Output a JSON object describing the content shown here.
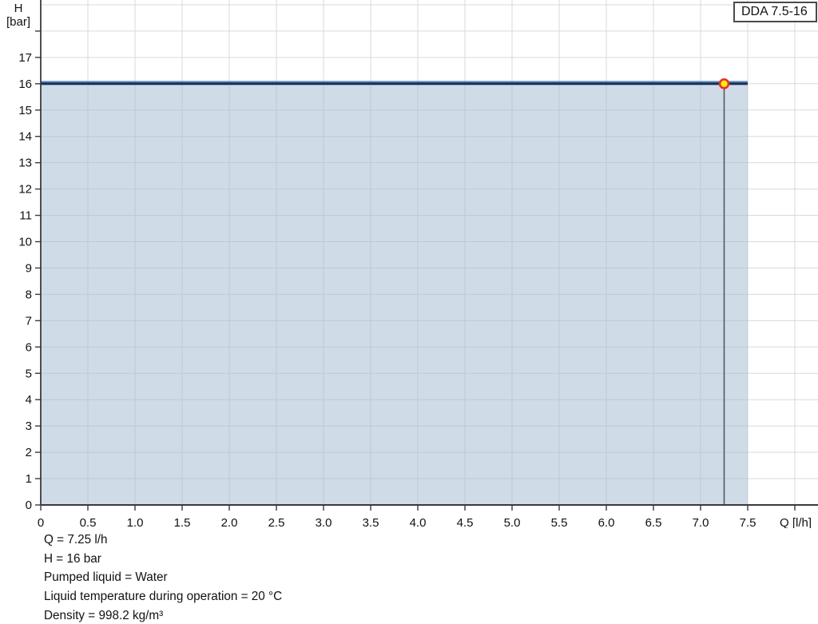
{
  "legend": {
    "label": "DDA 7.5-16"
  },
  "y_axis": {
    "title_line1": "H",
    "title_line2": "[bar]",
    "ticks": [
      0,
      1,
      2,
      3,
      4,
      5,
      6,
      7,
      8,
      9,
      10,
      11,
      12,
      13,
      14,
      15,
      16,
      17,
      18
    ],
    "tick_labels": [
      "0",
      "1",
      "2",
      "3",
      "4",
      "5",
      "6",
      "7",
      "8",
      "9",
      "10",
      "11",
      "12",
      "13",
      "14",
      "15",
      "16",
      "17"
    ]
  },
  "x_axis": {
    "title": "Q [l/h]",
    "ticks": [
      0,
      0.5,
      1,
      1.5,
      2,
      2.5,
      3,
      3.5,
      4,
      4.5,
      5,
      5.5,
      6,
      6.5,
      7,
      7.5,
      8
    ],
    "tick_labels": [
      "0",
      "0.5",
      "1.0",
      "1.5",
      "2.0",
      "2.5",
      "3.0",
      "3.5",
      "4.0",
      "4.5",
      "5.0",
      "5.5",
      "6.0",
      "6.5",
      "7.0",
      "7.5"
    ]
  },
  "chart_data": {
    "type": "area",
    "title": "DDA 7.5-16 pump performance curve",
    "xlabel": "Q [l/h]",
    "ylabel": "H [bar]",
    "xlim": [
      0,
      8.25
    ],
    "ylim": [
      0,
      19.2
    ],
    "grid": true,
    "legend_position": "top-right",
    "series": [
      {
        "name": "DDA 7.5-16",
        "x": [
          0,
          7.5
        ],
        "y": [
          16,
          16
        ],
        "fill_to_zero": true
      }
    ],
    "operating_point": {
      "q": 7.25,
      "h": 16
    }
  },
  "info": {
    "lines": [
      "Q = 7.25 l/h",
      "H = 16 bar",
      "Pumped liquid = Water",
      "Liquid temperature during operation = 20 °C",
      "Density = 998.2 kg/m³"
    ]
  },
  "colors": {
    "grid": "#d9d9d9",
    "axis": "#3a3a3a",
    "area_fill": "rgba(167,190,211,0.55)",
    "curve_core": "#14315b",
    "curve_halo": "#6b90bf",
    "op_line": "#4a5c6e",
    "marker_fill": "#ffe913",
    "marker_stroke": "#e8322a",
    "text": "#111111"
  }
}
